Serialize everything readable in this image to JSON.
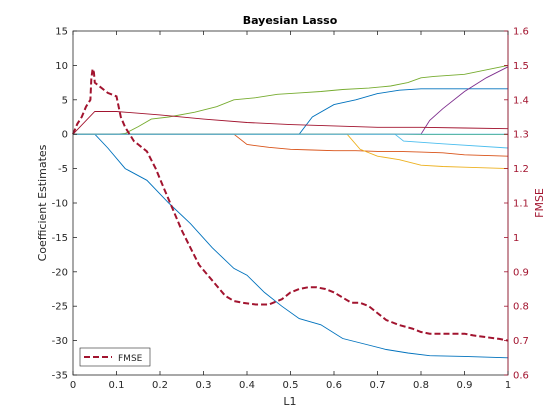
{
  "chart_data": {
    "type": "line",
    "title": "Bayesian Lasso",
    "xlabel": "L1",
    "ylabel_left": "Coefficient Estimates",
    "ylabel_right": "FMSE",
    "xlim": [
      0,
      1
    ],
    "ylim_left": [
      -35,
      15
    ],
    "ylim_right": [
      0.6,
      1.6
    ],
    "x_ticks": [
      0,
      0.1,
      0.2,
      0.3,
      0.4,
      0.5,
      0.6,
      0.7,
      0.8,
      0.9,
      1
    ],
    "x_tick_labels": [
      "0",
      "0.1",
      "0.2",
      "0.3",
      "0.4",
      "0.5",
      "0.6",
      "0.7",
      "0.8",
      "0.9",
      "1"
    ],
    "y_left_ticks": [
      15,
      10,
      5,
      0,
      -5,
      -10,
      -15,
      -20,
      -25,
      -30,
      -35
    ],
    "y_left_tick_labels": [
      "15",
      "10",
      "5",
      "0",
      "-5",
      "-10",
      "-15",
      "-20",
      "-25",
      "-30",
      "-35"
    ],
    "y_right_ticks": [
      1.6,
      1.5,
      1.4,
      1.3,
      1.2,
      1.1,
      1,
      0.9,
      0.8,
      0.7,
      0.6
    ],
    "y_right_tick_labels": [
      "1.6",
      "1.5",
      "1.4",
      "1.3",
      "1.2",
      "1.1",
      "1",
      "0.9",
      "0.8",
      "0.7",
      "0.6"
    ],
    "grid": false,
    "legend_position": "bottom-left",
    "colors": {
      "axis_left": "#262626",
      "axis_right": "#a2142f"
    },
    "coefficient_series": [
      {
        "color": "#0072bd",
        "x": [
          0,
          0.05,
          0.08,
          0.12,
          0.17,
          0.22,
          0.27,
          0.32,
          0.37,
          0.4,
          0.44,
          0.48,
          0.52,
          0.57,
          0.62,
          0.67,
          0.72,
          0.77,
          0.82,
          0.9,
          1.0
        ],
        "y": [
          0,
          0,
          -2,
          -5,
          -6.7,
          -10,
          -13,
          -16.5,
          -19.5,
          -20.5,
          -23,
          -25,
          -26.8,
          -27.7,
          -29.7,
          -30.5,
          -31.3,
          -31.8,
          -32.2,
          -32.3,
          -32.5
        ]
      },
      {
        "color": "#77ac30",
        "x": [
          0,
          0.1,
          0.12,
          0.15,
          0.18,
          0.22,
          0.28,
          0.33,
          0.37,
          0.42,
          0.47,
          0.52,
          0.57,
          0.62,
          0.68,
          0.73,
          0.77,
          0.8,
          0.83,
          0.9,
          1.0
        ],
        "y": [
          0,
          0,
          0.1,
          1.1,
          2.2,
          2.5,
          3.2,
          4.0,
          5.0,
          5.3,
          5.8,
          6.0,
          6.2,
          6.5,
          6.7,
          7.0,
          7.5,
          8.2,
          8.4,
          8.7,
          10.0
        ]
      },
      {
        "color": "#4dbeee",
        "x": [
          0,
          0.5,
          0.74,
          0.76,
          0.85,
          1.0
        ],
        "y": [
          0,
          0,
          0,
          -1.0,
          -1.4,
          -2.0
        ]
      },
      {
        "color": "#d95319",
        "x": [
          0,
          0.37,
          0.4,
          0.45,
          0.5,
          0.55,
          0.6,
          0.65,
          0.7,
          0.75,
          0.8,
          0.85,
          0.9,
          1.0
        ],
        "y": [
          0,
          0,
          -1.5,
          -1.9,
          -2.2,
          -2.3,
          -2.4,
          -2.4,
          -2.5,
          -2.5,
          -2.6,
          -2.7,
          -3.0,
          -3.2
        ]
      },
      {
        "color": "#edb120",
        "x": [
          0,
          0.63,
          0.66,
          0.7,
          0.75,
          0.8,
          0.85,
          0.9,
          1.0
        ],
        "y": [
          0,
          0,
          -2.2,
          -3.2,
          -3.7,
          -4.5,
          -4.7,
          -4.8,
          -5.0
        ]
      },
      {
        "color": "#0072bd",
        "x": [
          0,
          0.52,
          0.55,
          0.6,
          0.65,
          0.7,
          0.75,
          0.8,
          0.9,
          1.0
        ],
        "y": [
          0,
          0,
          2.5,
          4.3,
          5.0,
          5.9,
          6.4,
          6.6,
          6.6,
          6.6
        ]
      },
      {
        "color": "#7e2f8e",
        "x": [
          0,
          0.8,
          0.82,
          0.85,
          0.9,
          0.95,
          1.0
        ],
        "y": [
          0,
          0,
          2.0,
          3.7,
          6.2,
          8.2,
          9.8
        ]
      },
      {
        "color": "#a2142f",
        "x": [
          0,
          0.05,
          0.1,
          0.2,
          0.3,
          0.4,
          0.5,
          0.6,
          0.7,
          0.8,
          0.9,
          1.0
        ],
        "y": [
          0,
          3.3,
          3.3,
          2.8,
          2.2,
          1.7,
          1.4,
          1.2,
          1.0,
          1.0,
          0.9,
          0.8
        ]
      },
      {
        "color": "#77ac30",
        "x": [
          0,
          0.12,
          0.4,
          0.74,
          0.8,
          1.0
        ],
        "y": [
          0,
          0,
          0,
          0,
          -0.05,
          -0.05
        ]
      },
      {
        "color": "#4dbeee",
        "x": [
          0,
          1.0
        ],
        "y": [
          0,
          0
        ]
      }
    ],
    "fmse_series": {
      "name": "FMSE",
      "color": "#a2142f",
      "dashed": true,
      "x": [
        0.0,
        0.01,
        0.02,
        0.03,
        0.04,
        0.042,
        0.045,
        0.048,
        0.05,
        0.06,
        0.08,
        0.09,
        0.1,
        0.11,
        0.12,
        0.13,
        0.14,
        0.15,
        0.17,
        0.19,
        0.21,
        0.23,
        0.25,
        0.27,
        0.29,
        0.31,
        0.33,
        0.35,
        0.37,
        0.39,
        0.42,
        0.45,
        0.48,
        0.5,
        0.52,
        0.54,
        0.56,
        0.58,
        0.6,
        0.62,
        0.64,
        0.66,
        0.68,
        0.7,
        0.72,
        0.75,
        0.78,
        0.8,
        0.82,
        0.85,
        0.88,
        0.9,
        0.92,
        0.95,
        0.98,
        1.0
      ],
      "y": [
        1.3,
        1.33,
        1.35,
        1.38,
        1.4,
        1.46,
        1.49,
        1.48,
        1.45,
        1.44,
        1.42,
        1.415,
        1.41,
        1.35,
        1.32,
        1.3,
        1.28,
        1.27,
        1.25,
        1.2,
        1.14,
        1.08,
        1.02,
        0.97,
        0.92,
        0.89,
        0.86,
        0.83,
        0.815,
        0.81,
        0.805,
        0.805,
        0.82,
        0.84,
        0.85,
        0.855,
        0.855,
        0.85,
        0.84,
        0.825,
        0.81,
        0.81,
        0.8,
        0.78,
        0.76,
        0.745,
        0.735,
        0.725,
        0.72,
        0.72,
        0.72,
        0.72,
        0.715,
        0.71,
        0.705,
        0.7
      ]
    }
  }
}
